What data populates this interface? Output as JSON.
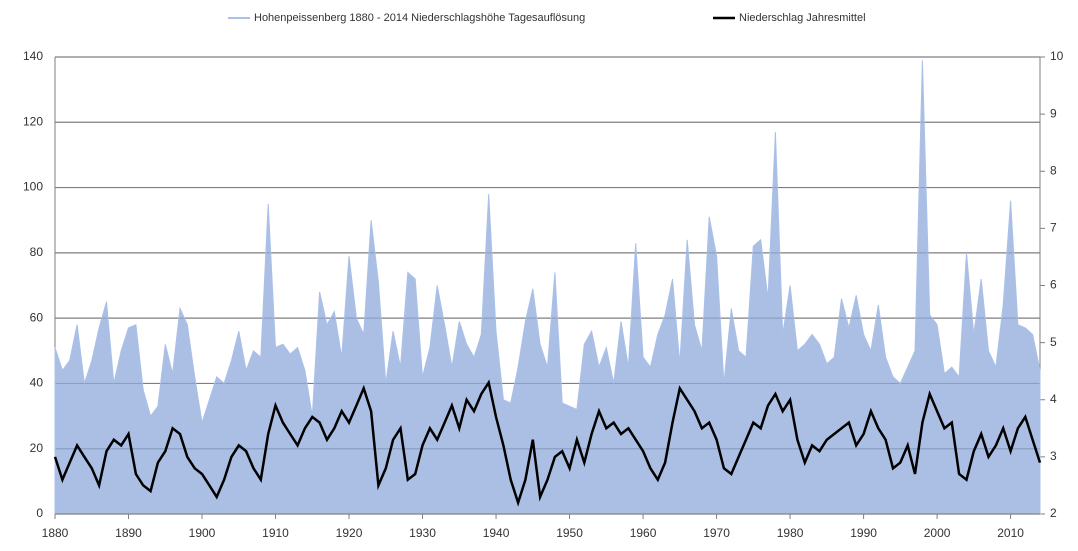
{
  "chart_data": {
    "type": "line",
    "x": [
      1880,
      1881,
      1882,
      1883,
      1884,
      1885,
      1886,
      1887,
      1888,
      1889,
      1890,
      1891,
      1892,
      1893,
      1894,
      1895,
      1896,
      1897,
      1898,
      1899,
      1900,
      1901,
      1902,
      1903,
      1904,
      1905,
      1906,
      1907,
      1908,
      1909,
      1910,
      1911,
      1912,
      1913,
      1914,
      1915,
      1916,
      1917,
      1918,
      1919,
      1920,
      1921,
      1922,
      1923,
      1924,
      1925,
      1926,
      1927,
      1928,
      1929,
      1930,
      1931,
      1932,
      1933,
      1934,
      1935,
      1936,
      1937,
      1938,
      1939,
      1940,
      1941,
      1942,
      1943,
      1944,
      1945,
      1946,
      1947,
      1948,
      1949,
      1950,
      1951,
      1952,
      1953,
      1954,
      1955,
      1956,
      1957,
      1958,
      1959,
      1960,
      1961,
      1962,
      1963,
      1964,
      1965,
      1966,
      1967,
      1968,
      1969,
      1970,
      1971,
      1972,
      1973,
      1974,
      1975,
      1976,
      1977,
      1978,
      1979,
      1980,
      1981,
      1982,
      1983,
      1984,
      1985,
      1986,
      1987,
      1988,
      1989,
      1990,
      1991,
      1992,
      1993,
      1994,
      1995,
      1996,
      1997,
      1998,
      1999,
      2000,
      2001,
      2002,
      2003,
      2004,
      2005,
      2006,
      2007,
      2008,
      2009,
      2010,
      2011,
      2012,
      2013,
      2014
    ],
    "series": [
      {
        "name": "Hohenpeissenberg 1880 - 2014 Niederschlagshöhe Tagesauflösung",
        "color": "#8faadc",
        "values": [
          51,
          44,
          47,
          58,
          40,
          47,
          57,
          65,
          40,
          50,
          57,
          58,
          38,
          30,
          33,
          52,
          43,
          63,
          58,
          42,
          28,
          35,
          42,
          40,
          47,
          56,
          44,
          50,
          48,
          95,
          51,
          52,
          49,
          51,
          44,
          30,
          68,
          58,
          62,
          48,
          79,
          60,
          55,
          90,
          71,
          40,
          56,
          45,
          74,
          72,
          42,
          51,
          70,
          58,
          45,
          59,
          52,
          48,
          55,
          98,
          56,
          35,
          34,
          45,
          59,
          69,
          52,
          45,
          74,
          34,
          33,
          32,
          52,
          56,
          45,
          51,
          40,
          59,
          45,
          83,
          48,
          45,
          55,
          61,
          72,
          46,
          84,
          58,
          50,
          91,
          79,
          40,
          63,
          50,
          48,
          82,
          84,
          66,
          117,
          55,
          70,
          50,
          52,
          55,
          52,
          46,
          48,
          66,
          57,
          67,
          55,
          50,
          64,
          48,
          42,
          40,
          45,
          50,
          139,
          61,
          58,
          43,
          45,
          42,
          80,
          55,
          72,
          50,
          45,
          64,
          96,
          58,
          57,
          55,
          44
        ]
      },
      {
        "name": "Niederschlag Jahresmittel",
        "color": "#000000",
        "axis": "y2",
        "values": [
          3.0,
          2.6,
          2.9,
          3.2,
          3.0,
          2.8,
          2.5,
          3.1,
          3.3,
          3.2,
          3.4,
          2.7,
          2.5,
          2.4,
          2.9,
          3.1,
          3.5,
          3.4,
          3.0,
          2.8,
          2.7,
          2.5,
          2.3,
          2.6,
          3.0,
          3.2,
          3.1,
          2.8,
          2.6,
          3.4,
          3.9,
          3.6,
          3.4,
          3.2,
          3.5,
          3.7,
          3.6,
          3.3,
          3.5,
          3.8,
          3.6,
          3.9,
          4.2,
          3.8,
          2.5,
          2.8,
          3.3,
          3.5,
          2.6,
          2.7,
          3.2,
          3.5,
          3.3,
          3.6,
          3.9,
          3.5,
          4.0,
          3.8,
          4.1,
          4.3,
          3.7,
          3.2,
          2.6,
          2.2,
          2.6,
          3.3,
          2.3,
          2.6,
          3.0,
          3.1,
          2.8,
          3.3,
          2.9,
          3.4,
          3.8,
          3.5,
          3.6,
          3.4,
          3.5,
          3.3,
          3.1,
          2.8,
          2.6,
          2.9,
          3.6,
          4.2,
          4.0,
          3.8,
          3.5,
          3.6,
          3.3,
          2.8,
          2.7,
          3.0,
          3.3,
          3.6,
          3.5,
          3.9,
          4.1,
          3.8,
          4.0,
          3.3,
          2.9,
          3.2,
          3.1,
          3.3,
          3.4,
          3.5,
          3.6,
          3.2,
          3.4,
          3.8,
          3.5,
          3.3,
          2.8,
          2.9,
          3.2,
          2.7,
          3.6,
          4.1,
          3.8,
          3.5,
          3.6,
          2.7,
          2.6,
          3.1,
          3.4,
          3.0,
          3.2,
          3.5,
          3.1,
          3.5,
          3.7,
          3.3,
          2.9
        ]
      }
    ],
    "xlim": [
      1880,
      2014
    ],
    "xticks": [
      1880,
      1890,
      1900,
      1910,
      1920,
      1930,
      1940,
      1950,
      1960,
      1970,
      1980,
      1990,
      2000,
      2010
    ],
    "ylim": [
      0,
      140
    ],
    "yticks": [
      0,
      20,
      40,
      60,
      80,
      100,
      120,
      140
    ],
    "y2lim": [
      2,
      10
    ],
    "y2ticks": [
      2,
      3,
      4,
      5,
      6,
      7,
      8,
      9,
      10
    ],
    "grid": true,
    "legend": "top"
  }
}
